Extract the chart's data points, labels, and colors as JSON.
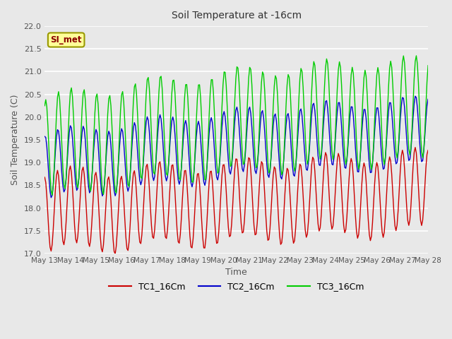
{
  "title": "Soil Temperature at -16cm",
  "xlabel": "Time",
  "ylabel": "Soil Temperature (C)",
  "ylim": [
    17.0,
    22.0
  ],
  "yticks": [
    17.0,
    17.5,
    18.0,
    18.5,
    19.0,
    19.5,
    20.0,
    20.5,
    21.0,
    21.5,
    22.0
  ],
  "bg_color": "#e8e8e8",
  "plot_bg_color": "#e8e8e8",
  "grid_color": "#ffffff",
  "annotation_text": "SI_met",
  "annotation_bg": "#ffff99",
  "annotation_border": "#999900",
  "tc1_color": "#cc0000",
  "tc2_color": "#0000cc",
  "tc3_color": "#00cc00",
  "xtick_labels": [
    "May 13",
    "May 14",
    "May 15",
    "May 16",
    "May 17",
    "May 18",
    "May 19",
    "May 20",
    "May 21",
    "May 22",
    "May 23",
    "May 24",
    "May 25",
    "May 26",
    "May 27",
    "May 28"
  ],
  "legend_entries": [
    "TC1_16Cm",
    "TC2_16Cm",
    "TC3_16Cm"
  ],
  "legend_colors": [
    "#cc0000",
    "#0000cc",
    "#00cc00"
  ],
  "figwidth": 6.4,
  "figheight": 4.8,
  "dpi": 100
}
